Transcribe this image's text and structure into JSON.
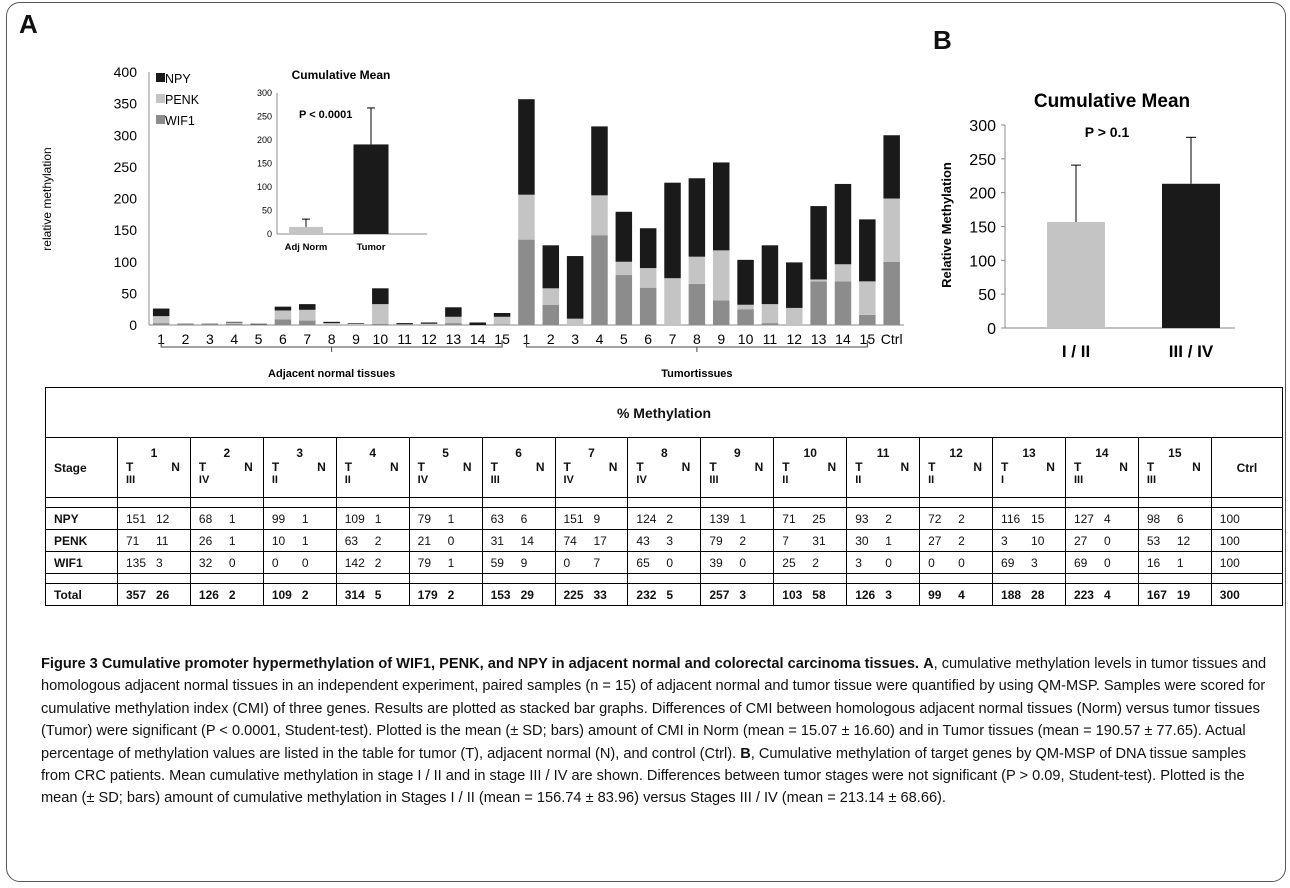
{
  "panels": {
    "a": "A",
    "b": "B"
  },
  "chart_data": [
    {
      "type": "bar",
      "stacked": true,
      "categories": [
        "1",
        "2",
        "3",
        "4",
        "5",
        "6",
        "7",
        "8",
        "9",
        "10",
        "11",
        "12",
        "13",
        "14",
        "15",
        "1",
        "2",
        "3",
        "4",
        "5",
        "6",
        "7",
        "8",
        "9",
        "10",
        "11",
        "12",
        "13",
        "14",
        "15",
        "Ctrl"
      ],
      "groups": [
        {
          "label": "Adjacent normal tissues",
          "from": 0,
          "to": 14
        },
        {
          "label": "Tumortissues",
          "from": 15,
          "to": 29
        }
      ],
      "ylabel": "relative methylation",
      "ylim": [
        0,
        400
      ],
      "yticks": [
        0,
        50,
        100,
        150,
        200,
        250,
        300,
        350,
        400
      ],
      "legend_position": "top-left",
      "series": [
        {
          "name": "WIF1",
          "color": "#8c8c8c",
          "values": [
            3,
            0,
            0,
            2,
            1,
            9,
            7,
            0,
            0,
            2,
            0,
            0,
            3,
            0,
            1,
            135,
            32,
            0,
            142,
            79,
            59,
            0,
            65,
            39,
            25,
            3,
            0,
            69,
            69,
            16,
            100
          ]
        },
        {
          "name": "PENK",
          "color": "#c4c4c4",
          "values": [
            11,
            1,
            1,
            2,
            0,
            14,
            17,
            3,
            2,
            31,
            1,
            2,
            10,
            0,
            12,
            71,
            26,
            10,
            63,
            21,
            31,
            74,
            43,
            79,
            7,
            30,
            27,
            3,
            27,
            53,
            100
          ]
        },
        {
          "name": "NPY",
          "color": "#1a1a1a",
          "values": [
            12,
            1,
            1,
            1,
            1,
            6,
            9,
            2,
            1,
            25,
            2,
            2,
            15,
            4,
            6,
            151,
            68,
            99,
            109,
            79,
            63,
            151,
            124,
            139,
            71,
            93,
            72,
            116,
            127,
            98,
            100
          ]
        }
      ],
      "inset": {
        "title": "Cumulative Mean",
        "categories": [
          "Adj Norm",
          "Tumor"
        ],
        "values": [
          15.07,
          190.57
        ],
        "errors": [
          16.6,
          77.65
        ],
        "colors": [
          "#c4c4c4",
          "#1a1a1a"
        ],
        "ylim": [
          0,
          300
        ],
        "yticks": [
          0,
          50,
          100,
          150,
          200,
          250,
          300
        ],
        "annotation": "P < 0.0001"
      }
    },
    {
      "type": "bar",
      "title": "Cumulative Mean",
      "ylabel": "Relative Methylation",
      "categories": [
        "I / II",
        "III / IV"
      ],
      "values": [
        156.74,
        213.14
      ],
      "errors": [
        83.96,
        68.66
      ],
      "colors": [
        "#c4c4c4",
        "#1a1a1a"
      ],
      "ylim": [
        0,
        300
      ],
      "yticks": [
        0,
        50,
        100,
        150,
        200,
        250,
        300
      ],
      "annotation": "P > 0.1"
    }
  ],
  "table": {
    "title": "% Methylation",
    "stage_label": "Stage",
    "ctrl_label": "Ctrl",
    "t_label": "T",
    "n_label": "N",
    "samples": [
      {
        "num": "1",
        "stage": "III"
      },
      {
        "num": "2",
        "stage": "IV"
      },
      {
        "num": "3",
        "stage": "II"
      },
      {
        "num": "4",
        "stage": "II"
      },
      {
        "num": "5",
        "stage": "IV"
      },
      {
        "num": "6",
        "stage": "III"
      },
      {
        "num": "7",
        "stage": "IV"
      },
      {
        "num": "8",
        "stage": "IV"
      },
      {
        "num": "9",
        "stage": "III"
      },
      {
        "num": "10",
        "stage": "II"
      },
      {
        "num": "11",
        "stage": "II"
      },
      {
        "num": "12",
        "stage": "II"
      },
      {
        "num": "13",
        "stage": "I"
      },
      {
        "num": "14",
        "stage": "III"
      },
      {
        "num": "15",
        "stage": "III"
      }
    ],
    "rows": [
      {
        "gene": "NPY",
        "pairs": [
          [
            "151",
            "12"
          ],
          [
            "68",
            "1"
          ],
          [
            "99",
            "1"
          ],
          [
            "109",
            "1"
          ],
          [
            "79",
            "1"
          ],
          [
            "63",
            "6"
          ],
          [
            "151",
            "9"
          ],
          [
            "124",
            "2"
          ],
          [
            "139",
            "1"
          ],
          [
            "71",
            "25"
          ],
          [
            "93",
            "2"
          ],
          [
            "72",
            "2"
          ],
          [
            "116",
            "15"
          ],
          [
            "127",
            "4"
          ],
          [
            "98",
            "6"
          ]
        ],
        "ctrl": "100"
      },
      {
        "gene": "PENK",
        "pairs": [
          [
            "71",
            "11"
          ],
          [
            "26",
            "1"
          ],
          [
            "10",
            "1"
          ],
          [
            "63",
            "2"
          ],
          [
            "21",
            "0"
          ],
          [
            "31",
            "14"
          ],
          [
            "74",
            "17"
          ],
          [
            "43",
            "3"
          ],
          [
            "79",
            "2"
          ],
          [
            "7",
            "31"
          ],
          [
            "30",
            "1"
          ],
          [
            "27",
            "2"
          ],
          [
            "3",
            "10"
          ],
          [
            "27",
            "0"
          ],
          [
            "53",
            "12"
          ]
        ],
        "ctrl": "100"
      },
      {
        "gene": "WIF1",
        "pairs": [
          [
            "135",
            "3"
          ],
          [
            "32",
            "0"
          ],
          [
            "0",
            "0"
          ],
          [
            "142",
            "2"
          ],
          [
            "79",
            "1"
          ],
          [
            "59",
            "9"
          ],
          [
            "0",
            "7"
          ],
          [
            "65",
            "0"
          ],
          [
            "39",
            "0"
          ],
          [
            "25",
            "2"
          ],
          [
            "3",
            "0"
          ],
          [
            "0",
            "0"
          ],
          [
            "69",
            "3"
          ],
          [
            "69",
            "0"
          ],
          [
            "16",
            "1"
          ]
        ],
        "ctrl": "100"
      },
      {
        "gene": "Total",
        "pairs": [
          [
            "357",
            "26"
          ],
          [
            "126",
            "2"
          ],
          [
            "109",
            "2"
          ],
          [
            "314",
            "5"
          ],
          [
            "179",
            "2"
          ],
          [
            "153",
            "29"
          ],
          [
            "225",
            "33"
          ],
          [
            "232",
            "5"
          ],
          [
            "257",
            "3"
          ],
          [
            "103",
            "58"
          ],
          [
            "126",
            "3"
          ],
          [
            "99",
            "4"
          ],
          [
            "188",
            "28"
          ],
          [
            "223",
            "4"
          ],
          [
            "167",
            "19"
          ]
        ],
        "ctrl": "300"
      }
    ]
  },
  "caption": {
    "label": "Figure 3 Cumulative promoter hypermethylation of WIF1, PENK, and NPY in adjacent normal and colorectal carcinoma tissues.",
    "a_letter": "A",
    "a_text": ", cumulative methylation levels in tumor tissues and homologous adjacent normal tissues in an independent experiment, paired samples (n = 15) of adjacent normal and tumor tissue were quantified by using QM-MSP. Samples were scored for cumulative methylation index (CMI) of three genes. Results are plotted as stacked bar graphs. Differences of CMI between homologous adjacent normal tissues (Norm) versus tumor tissues (Tumor) were significant (P < 0.0001, Student-test). Plotted is the mean (± SD; bars) amount of CMI in Norm (mean = 15.07 ± 16.60) and in Tumor tissues (mean = 190.57 ± 77.65). Actual percentage of methylation values are listed in the table for tumor (T), adjacent normal (N), and control (Ctrl).",
    "b_letter": "B",
    "b_text": ", Cumulative methylation of target genes by QM-MSP of DNA tissue samples from CRC patients. Mean cumulative methylation in stage I / II and in stage III / IV are shown. Differences between tumor stages were not significant (P > 0.09, Student-test). Plotted is the mean (± SD; bars) amount of cumulative methylation in Stages I / II (mean = 156.74 ± 83.96) versus Stages III / IV (mean = 213.14 ± 68.66)."
  }
}
